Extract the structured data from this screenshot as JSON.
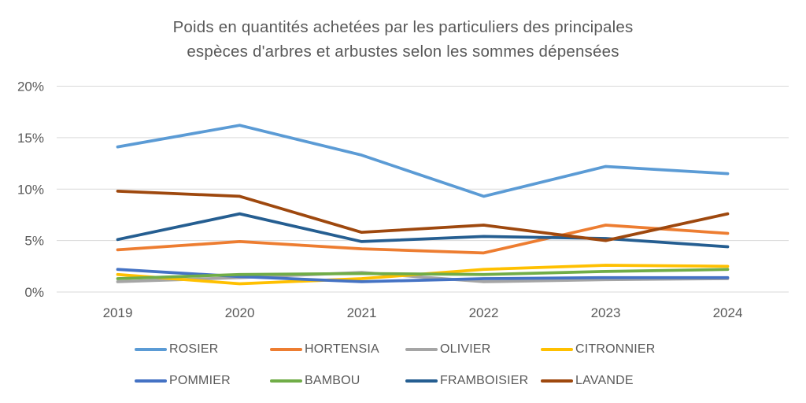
{
  "title": {
    "line1": "Poids en quantités achetées par les particuliers des principales",
    "line2": "espèces d'arbres et arbustes selon les sommes dépensées"
  },
  "chart_data": {
    "type": "line",
    "categories": [
      "2019",
      "2020",
      "2021",
      "2022",
      "2023",
      "2024"
    ],
    "series": [
      {
        "name": "ROSIER",
        "color": "#5B9BD5",
        "values": [
          14.1,
          16.2,
          13.3,
          9.3,
          12.2,
          11.5
        ]
      },
      {
        "name": "HORTENSIA",
        "color": "#ED7D31",
        "values": [
          4.1,
          4.9,
          4.2,
          3.8,
          6.5,
          5.7
        ]
      },
      {
        "name": "OLIVIER",
        "color": "#A5A5A5",
        "values": [
          1.0,
          1.4,
          1.9,
          1.0,
          1.2,
          1.3
        ]
      },
      {
        "name": "CITRONNIER",
        "color": "#FFC000",
        "values": [
          1.7,
          0.8,
          1.3,
          2.2,
          2.6,
          2.5
        ]
      },
      {
        "name": "POMMIER",
        "color": "#4472C4",
        "values": [
          2.2,
          1.5,
          1.0,
          1.3,
          1.4,
          1.4
        ]
      },
      {
        "name": "BAMBOU",
        "color": "#70AD47",
        "values": [
          1.3,
          1.7,
          1.8,
          1.7,
          2.0,
          2.2
        ]
      },
      {
        "name": "FRAMBOISIER",
        "color": "#255E91",
        "values": [
          5.1,
          7.6,
          4.9,
          5.4,
          5.2,
          4.4
        ]
      },
      {
        "name": "LAVANDE",
        "color": "#9E480E",
        "values": [
          9.8,
          9.3,
          5.8,
          6.5,
          5.0,
          7.6
        ]
      }
    ],
    "ylim": [
      0,
      20
    ],
    "y_ticks": [
      0,
      5,
      10,
      15,
      20
    ],
    "y_tick_labels": [
      "0%",
      "5%",
      "10%",
      "15%",
      "20%"
    ],
    "grid": true,
    "legend_position": "bottom",
    "legend_rows": [
      [
        "ROSIER",
        "HORTENSIA",
        "OLIVIER",
        "CITRONNIER"
      ],
      [
        "POMMIER",
        "BAMBOU",
        "FRAMBOISIER",
        "LAVANDE"
      ]
    ]
  },
  "colors": {
    "text": "#595959",
    "gridline": "#D9D9D9",
    "background": "#FFFFFF"
  }
}
